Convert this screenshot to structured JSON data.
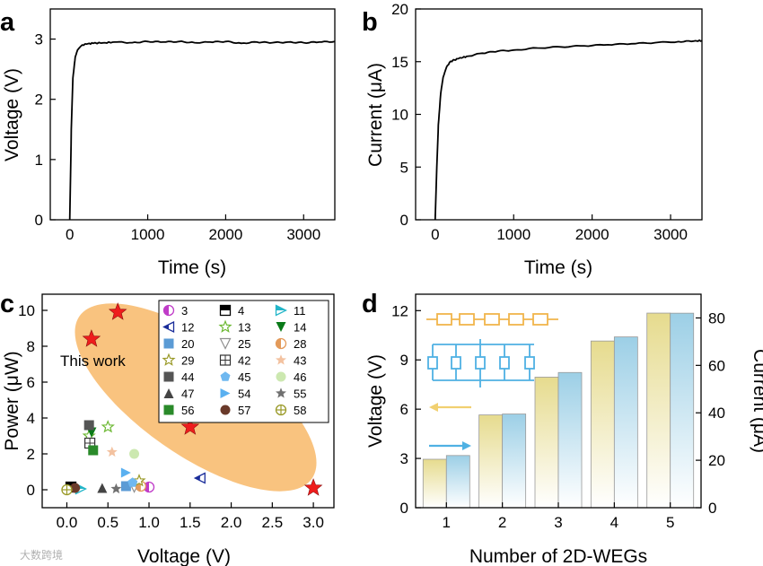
{
  "chart_data": [
    {
      "panel": "a",
      "type": "line",
      "xlabel": "Time (s)",
      "ylabel": "Voltage (V)",
      "xlim": [
        -250,
        3400
      ],
      "ylim": [
        0,
        3.5
      ],
      "xticks": [
        0,
        1000,
        2000,
        3000
      ],
      "yticks": [
        0,
        1,
        2,
        3
      ],
      "series": [
        {
          "name": "Voltage",
          "x": [
            0,
            20,
            40,
            70,
            100,
            140,
            200,
            300,
            450,
            600,
            800,
            1000,
            1200,
            1400,
            1600,
            1800,
            2000,
            2200,
            2400,
            2600,
            2800,
            3000,
            3200,
            3400
          ],
          "y": [
            0,
            1.5,
            2.35,
            2.7,
            2.82,
            2.88,
            2.92,
            2.93,
            2.94,
            2.95,
            2.94,
            2.96,
            2.95,
            2.96,
            2.94,
            2.95,
            2.96,
            2.93,
            2.95,
            2.94,
            2.95,
            2.94,
            2.95,
            2.96
          ]
        }
      ]
    },
    {
      "panel": "b",
      "type": "line",
      "xlabel": "Time (s)",
      "ylabel": "Current (μA)",
      "xlim": [
        -250,
        3400
      ],
      "ylim": [
        0,
        20
      ],
      "xticks": [
        0,
        1000,
        2000,
        3000
      ],
      "yticks": [
        0,
        5,
        10,
        15,
        20
      ],
      "series": [
        {
          "name": "Current",
          "x": [
            0,
            20,
            40,
            70,
            100,
            140,
            180,
            220,
            300,
            400,
            600,
            800,
            1000,
            1300,
            1600,
            1900,
            2200,
            2500,
            2800,
            3100,
            3300,
            3400
          ],
          "y": [
            0,
            5,
            9,
            12,
            13.5,
            14.4,
            14.9,
            15.1,
            15.3,
            15.5,
            15.8,
            16.0,
            16.1,
            16.3,
            16.4,
            16.5,
            16.6,
            16.7,
            16.8,
            16.9,
            16.95,
            17.0
          ]
        }
      ]
    },
    {
      "panel": "c",
      "type": "scatter",
      "xlabel": "Voltage (V)",
      "ylabel": "Power (μW)",
      "xlim": [
        -0.3,
        3.25
      ],
      "ylim": [
        -1.0,
        10.9
      ],
      "xticks": [
        0.0,
        0.5,
        1.0,
        1.5,
        2.0,
        2.5,
        3.0
      ],
      "xtick_labels": [
        "0.0",
        "0.5",
        "1.0",
        "1.5",
        "2.0",
        "2.5",
        "3.0"
      ],
      "yticks": [
        0,
        2,
        4,
        6,
        8,
        10
      ],
      "annotation": "This work",
      "this_work": {
        "marker": "star",
        "color": "#ee1c1c",
        "x": [
          0.3,
          0.62,
          1.5,
          3.0
        ],
        "y": [
          8.4,
          9.9,
          3.5,
          0.1
        ]
      },
      "series": [
        {
          "name": "3",
          "marker": "circle-half-magenta",
          "color": "#c03cc8",
          "x": [
            1.0
          ],
          "y": [
            0.15
          ]
        },
        {
          "name": "4",
          "marker": "square-half-black",
          "color": "#000000",
          "x": [
            0.05
          ],
          "y": [
            0.15
          ]
        },
        {
          "name": "11",
          "marker": "triangle-right-half",
          "color": "#22b5c8",
          "x": [
            0.17
          ],
          "y": [
            0.05
          ]
        },
        {
          "name": "12",
          "marker": "triangle-left-half",
          "color": "#1a2d9a",
          "x": [
            1.62
          ],
          "y": [
            0.65
          ]
        },
        {
          "name": "13",
          "marker": "star-open",
          "color": "#6cb832",
          "x": [
            0.27,
            0.5
          ],
          "y": [
            3.0,
            3.5
          ]
        },
        {
          "name": "14",
          "marker": "triangle-down",
          "color": "#0a7a18",
          "x": [
            0.3
          ],
          "y": [
            3.2
          ]
        },
        {
          "name": "20",
          "marker": "square",
          "color": "#5b9bd5",
          "x": [
            0.72
          ],
          "y": [
            0.2
          ]
        },
        {
          "name": "25",
          "marker": "triangle-down-open",
          "color": "#909090",
          "x": [
            0.82
          ],
          "y": [
            0.15
          ]
        },
        {
          "name": "28",
          "marker": "circle-half-orange",
          "color": "#e39a5a",
          "x": [
            0.9
          ],
          "y": [
            0.2
          ]
        },
        {
          "name": "29",
          "marker": "star-open",
          "color": "#9a9a28",
          "x": [
            0.88
          ],
          "y": [
            0.5
          ]
        },
        {
          "name": "42",
          "marker": "square-plus",
          "color": "#333333",
          "x": [
            0.28
          ],
          "y": [
            2.6
          ]
        },
        {
          "name": "43",
          "marker": "star",
          "color": "#f3c2a0",
          "x": [
            0.55
          ],
          "y": [
            2.1
          ]
        },
        {
          "name": "44",
          "marker": "square",
          "color": "#555555",
          "x": [
            0.27
          ],
          "y": [
            3.6
          ]
        },
        {
          "name": "45",
          "marker": "pentagon",
          "color": "#6fb8f0",
          "x": [
            0.8
          ],
          "y": [
            0.4
          ]
        },
        {
          "name": "46",
          "marker": "circle",
          "color": "#cce8b0",
          "x": [
            0.82
          ],
          "y": [
            2.0
          ]
        },
        {
          "name": "47",
          "marker": "triangle-up",
          "color": "#444444",
          "x": [
            0.43
          ],
          "y": [
            0.1
          ]
        },
        {
          "name": "54",
          "marker": "triangle-right",
          "color": "#5ab0f0",
          "x": [
            0.72
          ],
          "y": [
            0.95
          ]
        },
        {
          "name": "55",
          "marker": "star",
          "color": "#707070",
          "x": [
            0.6
          ],
          "y": [
            0.05
          ]
        },
        {
          "name": "56",
          "marker": "square",
          "color": "#2a8a2a",
          "x": [
            0.32
          ],
          "y": [
            2.2
          ]
        },
        {
          "name": "57",
          "marker": "circle",
          "color": "#6a3a2a",
          "x": [
            0.1
          ],
          "y": [
            0.1
          ]
        },
        {
          "name": "58",
          "marker": "circle-plus",
          "color": "#9a9a28",
          "x": [
            0.0
          ],
          "y": [
            0.0
          ]
        }
      ]
    },
    {
      "panel": "d",
      "type": "bar",
      "xlabel": "Number of 2D-WEGs",
      "ylabel": "Voltage (V)",
      "y2label": "Current (μA)",
      "categories": [
        "1",
        "2",
        "3",
        "4",
        "5"
      ],
      "ylim": [
        0,
        13
      ],
      "yticks": [
        0,
        3,
        6,
        9,
        12
      ],
      "y2lim": [
        0,
        90
      ],
      "y2ticks": [
        0,
        20,
        40,
        60,
        80
      ],
      "series": [
        {
          "name": "Voltage",
          "axis": "left",
          "color": "#ece49c",
          "values": [
            2.95,
            5.65,
            7.95,
            10.15,
            11.85
          ]
        },
        {
          "name": "Current",
          "axis": "right",
          "color": "#a9d6ea",
          "values": [
            22,
            39.5,
            57,
            72,
            82
          ]
        }
      ]
    }
  ],
  "panel_labels": [
    "a",
    "b",
    "c",
    "d"
  ],
  "watermark": "大数跨境",
  "colors": {
    "axis": "#000000",
    "ellipse": "#f8b868",
    "star": "#ee1c1c",
    "voltage_bar": "#ece49c",
    "current_bar": "#a9d6ea",
    "series_circuit": "#f1b54b",
    "parallel_circuit": "#4fb1e3"
  }
}
